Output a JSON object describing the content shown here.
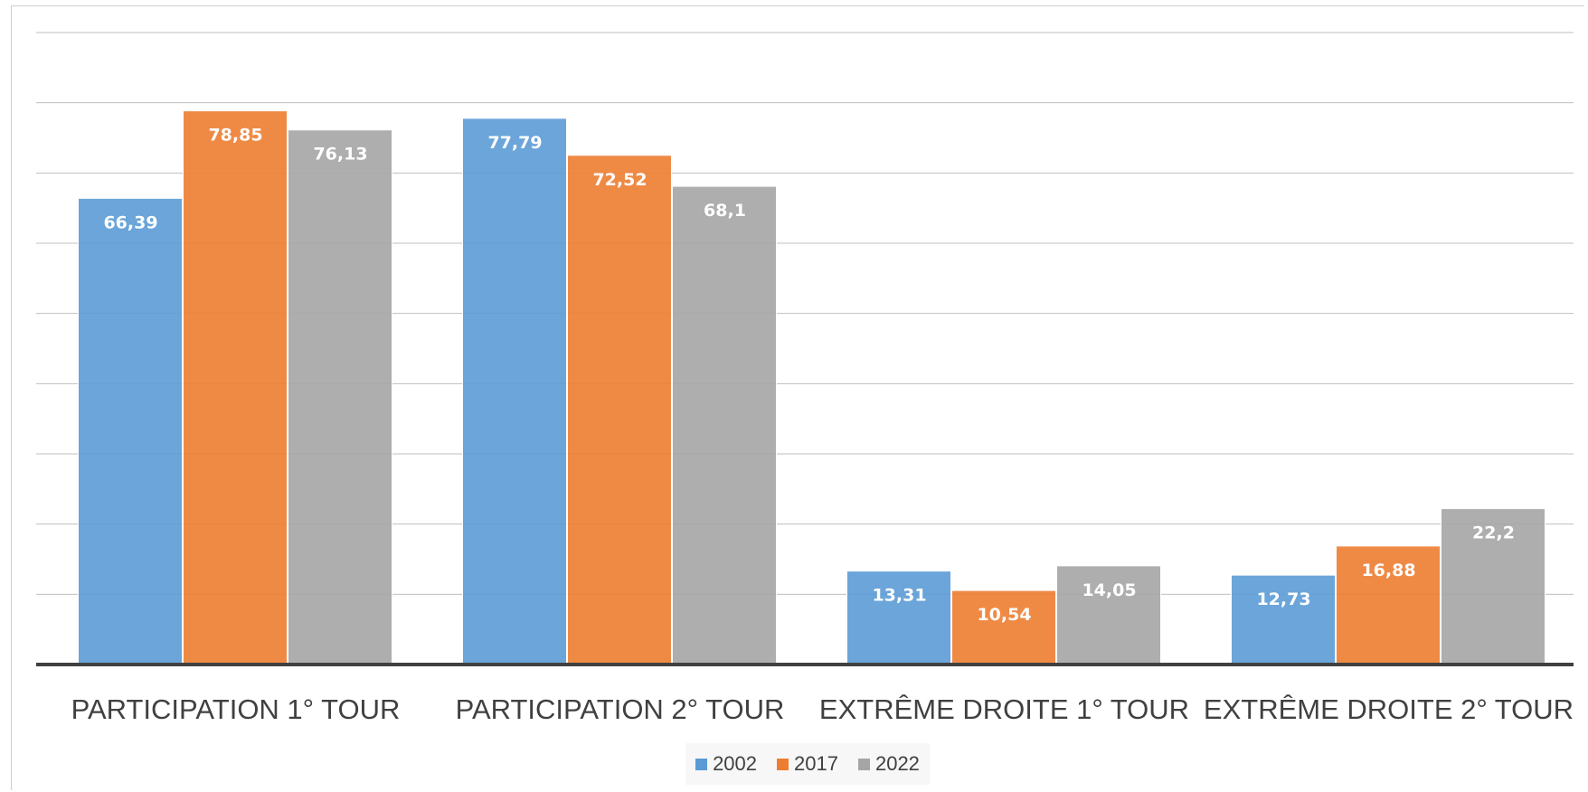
{
  "chart_data": {
    "type": "bar",
    "categories": [
      "PARTICIPATION 1° TOUR",
      "PARTICIPATION 2° TOUR",
      "EXTRÊME DROITE 1° TOUR",
      "EXTRÊME DROITE 2° TOUR"
    ],
    "series": [
      {
        "name": "2002",
        "color": "#5B9BD5",
        "values": [
          66.39,
          77.79,
          13.31,
          12.73
        ],
        "labels": [
          "66,39",
          "77,79",
          "13,31",
          "12,73"
        ]
      },
      {
        "name": "2017",
        "color": "#ED7D31",
        "values": [
          78.85,
          72.52,
          10.54,
          16.88
        ],
        "labels": [
          "78,85",
          "72,52",
          "10,54",
          "16,88"
        ]
      },
      {
        "name": "2022",
        "color": "#A5A5A5",
        "values": [
          76.13,
          68.1,
          14.05,
          22.2
        ],
        "labels": [
          "76,13",
          "68,1",
          "14,05",
          "22,2"
        ]
      }
    ],
    "ylim": [
      0,
      90
    ],
    "grid": true,
    "legend": "bottom"
  }
}
